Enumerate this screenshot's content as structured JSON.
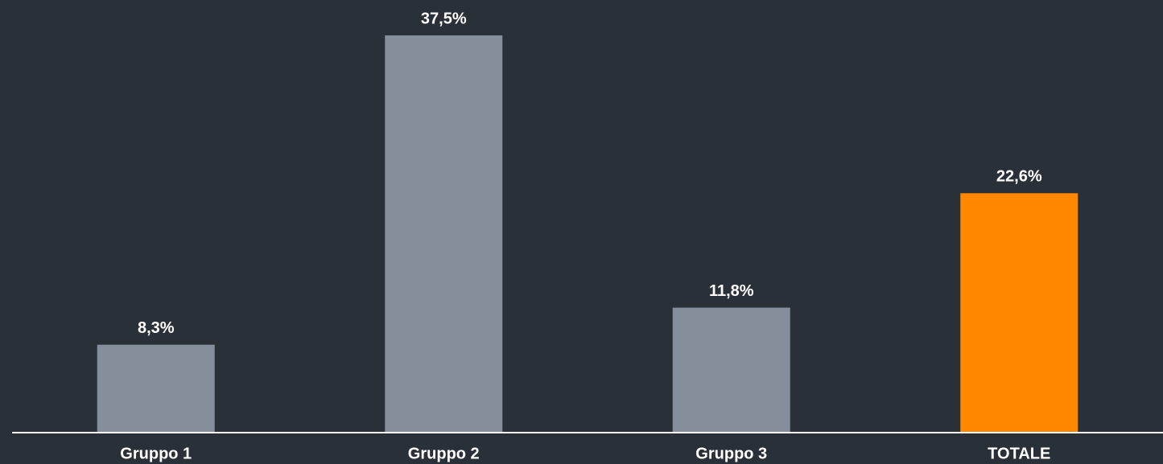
{
  "chart_data": {
    "type": "bar",
    "categories": [
      "Gruppo 1",
      "Gruppo 2",
      "Gruppo 3",
      "TOTALE"
    ],
    "values": [
      8.3,
      37.5,
      11.8,
      22.6
    ],
    "value_labels": [
      "8,3%",
      "37,5%",
      "11,8%",
      "22,6%"
    ],
    "colors": [
      "#858e9b",
      "#858e9b",
      "#858e9b",
      "#ff8800"
    ]
  }
}
